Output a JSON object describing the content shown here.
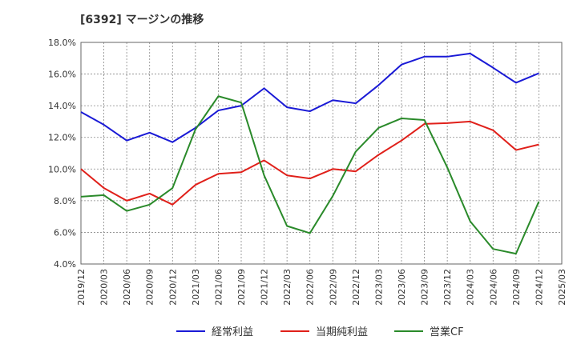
{
  "chart_data": {
    "type": "line",
    "title": "[6392]  マージンの推移",
    "xlabel": "",
    "ylabel": "",
    "categories": [
      "2019/12",
      "2020/03",
      "2020/06",
      "2020/09",
      "2020/12",
      "2021/03",
      "2021/06",
      "2021/09",
      "2021/12",
      "2022/03",
      "2022/06",
      "2022/09",
      "2022/12",
      "2023/03",
      "2023/06",
      "2023/09",
      "2023/12",
      "2024/03",
      "2024/06",
      "2024/09",
      "2024/12",
      "2025/03"
    ],
    "ylim": [
      4.0,
      18.0
    ],
    "yticks": [
      "4.0%",
      "6.0%",
      "8.0%",
      "10.0%",
      "12.0%",
      "14.0%",
      "16.0%",
      "18.0%"
    ],
    "grid": true,
    "legend_position": "bottom",
    "series": [
      {
        "name": "経常利益",
        "color": "#1a1ad6",
        "values": [
          13.6,
          12.8,
          11.8,
          12.3,
          11.7,
          12.6,
          13.7,
          14.0,
          15.1,
          13.9,
          13.65,
          14.35,
          14.15,
          15.3,
          16.6,
          17.1,
          17.1,
          17.3,
          16.4,
          15.45,
          16.05,
          null
        ]
      },
      {
        "name": "当期純利益",
        "color": "#e0201a",
        "values": [
          10.0,
          8.8,
          8.0,
          8.45,
          7.75,
          9.0,
          9.7,
          9.8,
          10.55,
          9.6,
          9.4,
          10.0,
          9.85,
          10.9,
          11.8,
          12.85,
          12.9,
          13.0,
          12.45,
          11.2,
          11.55,
          null
        ]
      },
      {
        "name": "営業CF",
        "color": "#2a8a2a",
        "values": [
          8.25,
          8.35,
          7.35,
          7.75,
          8.8,
          12.5,
          14.6,
          14.2,
          9.6,
          6.4,
          5.95,
          8.3,
          11.1,
          12.6,
          13.2,
          13.1,
          10.1,
          6.7,
          4.95,
          4.65,
          7.95,
          null
        ]
      }
    ]
  }
}
